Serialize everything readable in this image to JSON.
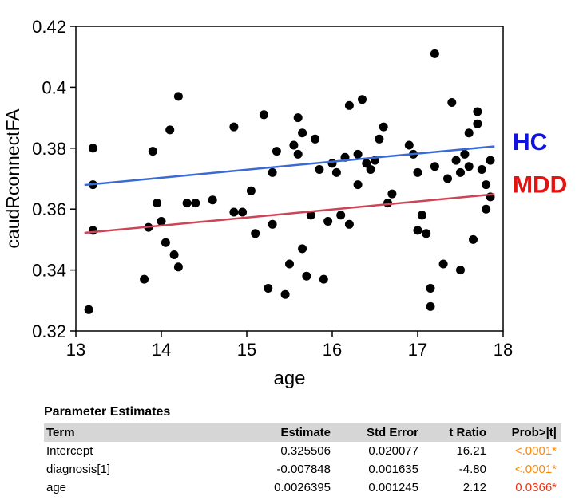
{
  "chart_data": {
    "type": "scatter",
    "title": "",
    "xlabel": "age",
    "ylabel": "caudRconnectFA",
    "xlim": [
      13,
      18
    ],
    "ylim": [
      0.32,
      0.42
    ],
    "grid": false,
    "legend_position": "right",
    "xticks": [
      "13",
      "14",
      "15",
      "16",
      "17",
      "18"
    ],
    "xtick_values": [
      13,
      14,
      15,
      16,
      17,
      18
    ],
    "yticks": [
      "0.32",
      "0.34",
      "0.36",
      "0.38",
      "0.4",
      "0.42"
    ],
    "ytick_values": [
      0.32,
      0.34,
      0.36,
      0.38,
      0.4,
      0.42
    ],
    "point_color": "#000000",
    "points": [
      [
        13.15,
        0.327
      ],
      [
        13.2,
        0.38
      ],
      [
        13.2,
        0.368
      ],
      [
        13.2,
        0.353
      ],
      [
        13.8,
        0.337
      ],
      [
        13.85,
        0.354
      ],
      [
        13.9,
        0.379
      ],
      [
        13.95,
        0.362
      ],
      [
        14.0,
        0.356
      ],
      [
        14.05,
        0.349
      ],
      [
        14.1,
        0.386
      ],
      [
        14.15,
        0.345
      ],
      [
        14.2,
        0.341
      ],
      [
        14.2,
        0.397
      ],
      [
        14.3,
        0.362
      ],
      [
        14.4,
        0.362
      ],
      [
        14.6,
        0.363
      ],
      [
        14.85,
        0.387
      ],
      [
        14.85,
        0.359
      ],
      [
        14.95,
        0.359
      ],
      [
        15.05,
        0.366
      ],
      [
        15.1,
        0.352
      ],
      [
        15.2,
        0.391
      ],
      [
        15.25,
        0.334
      ],
      [
        15.3,
        0.372
      ],
      [
        15.3,
        0.355
      ],
      [
        15.35,
        0.379
      ],
      [
        15.45,
        0.332
      ],
      [
        15.5,
        0.342
      ],
      [
        15.55,
        0.381
      ],
      [
        15.6,
        0.39
      ],
      [
        15.6,
        0.378
      ],
      [
        15.65,
        0.385
      ],
      [
        15.65,
        0.347
      ],
      [
        15.7,
        0.338
      ],
      [
        15.75,
        0.358
      ],
      [
        15.8,
        0.383
      ],
      [
        15.85,
        0.373
      ],
      [
        15.9,
        0.337
      ],
      [
        15.95,
        0.356
      ],
      [
        16.0,
        0.375
      ],
      [
        16.05,
        0.372
      ],
      [
        16.1,
        0.358
      ],
      [
        16.15,
        0.377
      ],
      [
        16.2,
        0.394
      ],
      [
        16.2,
        0.355
      ],
      [
        16.3,
        0.378
      ],
      [
        16.3,
        0.368
      ],
      [
        16.35,
        0.396
      ],
      [
        16.4,
        0.375
      ],
      [
        16.45,
        0.373
      ],
      [
        16.5,
        0.376
      ],
      [
        16.55,
        0.383
      ],
      [
        16.6,
        0.387
      ],
      [
        16.65,
        0.362
      ],
      [
        16.7,
        0.365
      ],
      [
        16.9,
        0.381
      ],
      [
        16.95,
        0.378
      ],
      [
        17.0,
        0.353
      ],
      [
        17.0,
        0.372
      ],
      [
        17.05,
        0.358
      ],
      [
        17.1,
        0.352
      ],
      [
        17.15,
        0.328
      ],
      [
        17.15,
        0.334
      ],
      [
        17.2,
        0.411
      ],
      [
        17.2,
        0.374
      ],
      [
        17.3,
        0.342
      ],
      [
        17.35,
        0.37
      ],
      [
        17.4,
        0.395
      ],
      [
        17.45,
        0.376
      ],
      [
        17.5,
        0.372
      ],
      [
        17.5,
        0.34
      ],
      [
        17.55,
        0.378
      ],
      [
        17.6,
        0.374
      ],
      [
        17.6,
        0.385
      ],
      [
        17.65,
        0.35
      ],
      [
        17.7,
        0.388
      ],
      [
        17.7,
        0.392
      ],
      [
        17.75,
        0.373
      ],
      [
        17.8,
        0.36
      ],
      [
        17.8,
        0.368
      ],
      [
        17.85,
        0.364
      ],
      [
        17.85,
        0.376
      ]
    ],
    "lines": [
      {
        "name": "HC",
        "line_color": "#3a6ad4",
        "label_color": "#1212dd",
        "x1": 13.1,
        "y1": 0.3679,
        "x2": 17.9,
        "y2": 0.3806,
        "label_y": 0.382
      },
      {
        "name": "MDD",
        "line_color": "#cc4455",
        "label_color": "#e51212",
        "x1": 13.1,
        "y1": 0.3522,
        "x2": 17.9,
        "y2": 0.3649,
        "label_y": 0.368
      }
    ]
  },
  "table": {
    "title": "Parameter Estimates",
    "headers": [
      "Term",
      "Estimate",
      "Std Error",
      "t Ratio",
      "Prob>|t|"
    ],
    "rows": [
      {
        "term": "Intercept",
        "estimate": "0.325506",
        "std_error": "0.020077",
        "t_ratio": "16.21",
        "prob": "<.0001*",
        "prob_color": "#ff8800"
      },
      {
        "term": "diagnosis[1]",
        "estimate": "-0.007848",
        "std_error": "0.001635",
        "t_ratio": "-4.80",
        "prob": "<.0001*",
        "prob_color": "#ff8800"
      },
      {
        "term": "age",
        "estimate": "0.0026395",
        "std_error": "0.001245",
        "t_ratio": "2.12",
        "prob": "0.0366*",
        "prob_color": "#ee3311"
      }
    ]
  }
}
